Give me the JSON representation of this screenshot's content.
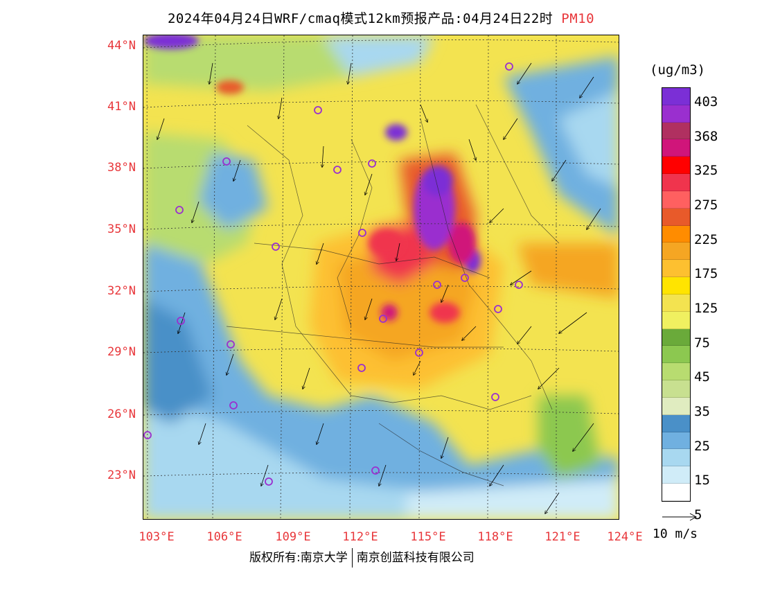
{
  "title": "2024年04月24日WRF/cmaq模式12km预报产品:04月24日22时",
  "pollutant": "PM10",
  "pollutant_color": "#e8363a",
  "lat_labels": [
    "44°N",
    "41°N",
    "38°N",
    "35°N",
    "32°N",
    "29°N",
    "26°N",
    "23°N"
  ],
  "lon_labels": [
    "103°E",
    "106°E",
    "109°E",
    "112°E",
    "115°E",
    "118°E",
    "121°E",
    "124°E"
  ],
  "legend": {
    "unit": "(ug/m3)",
    "colors": [
      "#7b2fd6",
      "#9a2fcf",
      "#b03060",
      "#d0157a",
      "#ff0000",
      "#f0344d",
      "#ff6060",
      "#e85a2a",
      "#ff8c00",
      "#f5a623",
      "#fdc030",
      "#ffe400",
      "#f3e350",
      "#f0f060",
      "#6aaa3a",
      "#8cc850",
      "#b8dc70",
      "#c8e090",
      "#e0ecc0",
      "#4a90c8",
      "#70b0e0",
      "#a8d8f0",
      "#d0ecf8",
      "#ffffff"
    ],
    "labels": [
      "403",
      "368",
      "325",
      "275",
      "225",
      "175",
      "125",
      "75",
      "45",
      "35",
      "25",
      "15",
      "5"
    ]
  },
  "wind_reference": "10 m/s",
  "footer": {
    "left": "版权所有:南京大学",
    "right": "南京创蓝科技有限公司"
  }
}
